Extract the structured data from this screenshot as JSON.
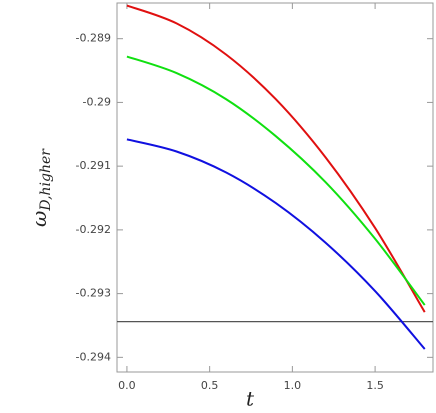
{
  "chart_data": {
    "type": "line",
    "xlabel": "t",
    "ylabel": {
      "main": "ω",
      "sub": "D,higher"
    },
    "x": [
      0,
      0.3,
      0.6,
      0.9,
      1.2,
      1.5,
      1.8
    ],
    "series": [
      {
        "color": "#e01010",
        "values": [
          -0.28848,
          -0.28876,
          -0.28925,
          -0.28995,
          -0.29086,
          -0.29197,
          -0.29329
        ]
      },
      {
        "color": "#10e010",
        "values": [
          -0.28928,
          -0.28954,
          -0.28995,
          -0.29053,
          -0.29125,
          -0.29214,
          -0.29318
        ]
      },
      {
        "color": "#1010e0",
        "values": [
          -0.29058,
          -0.29077,
          -0.2911,
          -0.29158,
          -0.2922,
          -0.29296,
          -0.29387
        ]
      }
    ],
    "hline": {
      "value": -0.29344,
      "color": "#555555"
    },
    "xlim": [
      -0.06,
      1.85
    ],
    "ylim": [
      -0.29423,
      -0.28844
    ],
    "xticks": [
      {
        "value": 0,
        "label": "0.0"
      },
      0.5,
      {
        "value": 1,
        "label": "1.0"
      },
      1.5
    ],
    "yticks": [
      -0.289,
      -0.29,
      -0.291,
      -0.292,
      -0.293,
      -0.294
    ]
  }
}
